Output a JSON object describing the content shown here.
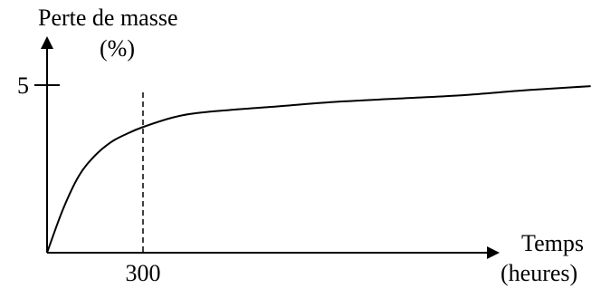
{
  "chart_data": {
    "type": "line",
    "title": "",
    "ylabel": [
      "Perte de masse",
      "(%)"
    ],
    "xlabel": [
      "Temps",
      "(heures)"
    ],
    "xlim": [
      0,
      1850
    ],
    "ylim": [
      0,
      5.7
    ],
    "x_ticks": [
      300
    ],
    "y_ticks": [
      5
    ],
    "grid": false,
    "series": [
      {
        "name": "",
        "x": [
          0,
          50,
          100,
          150,
          200,
          250,
          300,
          400,
          500,
          700,
          900,
          1100,
          1300,
          1500,
          1700
        ],
        "y": [
          0,
          1.3,
          2.3,
          2.9,
          3.3,
          3.55,
          3.75,
          4.05,
          4.2,
          4.35,
          4.5,
          4.6,
          4.7,
          4.85,
          4.97
        ]
      }
    ],
    "reference_lines": [
      {
        "axis": "x",
        "value": 300,
        "style": "dashed"
      }
    ]
  }
}
